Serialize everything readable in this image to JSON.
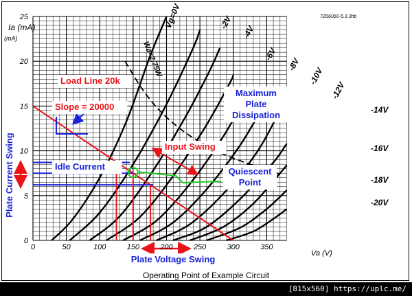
{
  "chart_data": {
    "type": "line",
    "ref_code": "7Z06060-5.3.3hb",
    "xlabel": "Va (V)",
    "ylabel": "Ia (mA)",
    "xlim": [
      0,
      380
    ],
    "ylim": [
      0,
      25
    ],
    "x_ticks": [
      0,
      50,
      100,
      150,
      200,
      250,
      300,
      350
    ],
    "y_ticks": [
      0,
      5,
      10,
      15,
      20,
      25
    ],
    "grid": true,
    "series": [
      {
        "name": "Vg=0V",
        "x": [
          28,
          60,
          100,
          140,
          175,
          200
        ],
        "y": [
          0,
          2.4,
          7,
          13.3,
          20.5,
          25
        ]
      },
      {
        "name": "-2V",
        "x": [
          55,
          100,
          150,
          200,
          240,
          250
        ],
        "y": [
          0,
          3.1,
          8.5,
          15.2,
          21.5,
          23.5
        ]
      },
      {
        "name": "-4V",
        "x": [
          85,
          130,
          180,
          230,
          265,
          280
        ],
        "y": [
          0,
          2.7,
          7.8,
          14,
          19,
          21.5
        ]
      },
      {
        "name": "-6V",
        "x": [
          110,
          160,
          210,
          260,
          295,
          300
        ],
        "y": [
          0,
          2.6,
          7.2,
          12.9,
          17.6,
          18.5
        ]
      },
      {
        "name": "-8V",
        "x": [
          135,
          185,
          235,
          285,
          320
        ],
        "y": [
          0,
          2.2,
          6.3,
          11.6,
          16.2
        ]
      },
      {
        "name": "-10V",
        "x": [
          160,
          210,
          260,
          310,
          345
        ],
        "y": [
          0,
          2,
          5.7,
          10.6,
          15
        ]
      },
      {
        "name": "-12V",
        "x": [
          185,
          235,
          285,
          335,
          370
        ],
        "y": [
          0,
          1.8,
          5.2,
          9.8,
          14.5
        ]
      },
      {
        "name": "-14V",
        "x": [
          210,
          260,
          310,
          360,
          380
        ],
        "y": [
          0,
          1.5,
          4.6,
          8.7,
          10.8
        ]
      },
      {
        "name": "-16V",
        "x": [
          235,
          285,
          330,
          370,
          380
        ],
        "y": [
          0,
          1.5,
          4.1,
          7.5,
          8.4
        ]
      },
      {
        "name": "-18V",
        "x": [
          260,
          310,
          350,
          380
        ],
        "y": [
          0,
          1.4,
          3.5,
          5.6
        ]
      },
      {
        "name": "-20V",
        "x": [
          290,
          330,
          360,
          380
        ],
        "y": [
          0,
          1,
          2.4,
          3.5
        ]
      }
    ],
    "load_line": {
      "x": [
        0,
        300
      ],
      "y": [
        15,
        0
      ]
    },
    "dissipation_curve": {
      "x": [
        138,
        160,
        180,
        200,
        225,
        250,
        280,
        310,
        340,
        370
      ],
      "y": [
        20,
        17.3,
        15.3,
        13.75,
        12.2,
        11,
        9.8,
        8.9,
        8.1,
        7.4
      ]
    },
    "quiescent_point": {
      "x": 150,
      "y": 7.5
    },
    "swing": {
      "va_min": 125,
      "va_max": 176,
      "ia_min": 6.2,
      "ia_max": 8.7
    }
  },
  "labels": {
    "wg_label": "Wa=2.75W",
    "load_line": "Load Line 20k",
    "slope": "Slope = 20000",
    "input_swing": "Input Swing",
    "idle_current": "Idle Current",
    "quiescent_1": "Quiescent",
    "quiescent_2": "Point",
    "max_1": "Maximum",
    "max_2": "Plate",
    "max_3": "Dissipation",
    "plate_current_swing": "Plate Current Swing",
    "plate_voltage_swing": "Plate Voltage Swing",
    "y_unit": "(mA)"
  },
  "caption": "Operating Point of Example Circuit",
  "watermark": "[815x560] https://uplc.me/",
  "colors": {
    "red": "#e8141a",
    "blue": "#1a22d8",
    "green": "#22cc22"
  }
}
